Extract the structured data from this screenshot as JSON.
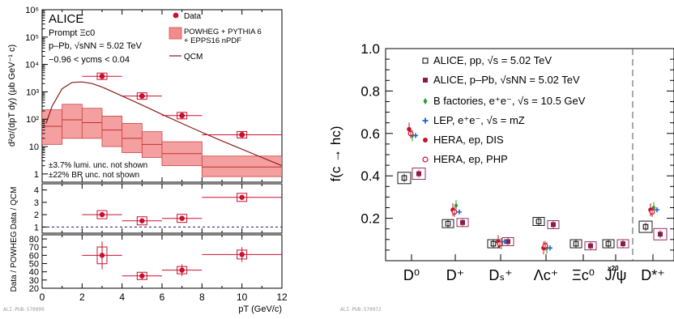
{
  "chart_data": [
    {
      "type": "scatter",
      "panel": "left",
      "experiment": "ALICE",
      "info_lines": [
        "Prompt Ξc0",
        "p–Pb, √sNN = 5.02 TeV",
        "−0.96 < ycms < 0.04"
      ],
      "ylabel": "d²σ/(dpT dy) (μb GeV⁻¹ c)",
      "xlabel": "pT (GeV/c)",
      "xlim": [
        0,
        12
      ],
      "x_ticks": [
        "0",
        "2",
        "4",
        "6",
        "8",
        "10",
        "12"
      ],
      "top": {
        "log_y": true,
        "ylim": [
          0.5,
          1000000
        ],
        "y_ticks": [
          "1",
          "10",
          "10²",
          "10³",
          "10⁴",
          "10⁵",
          "10⁶"
        ],
        "legend": [
          "Data",
          "POWHEG + PYTHIA 6 + EPPS16 nPDF",
          "QCM"
        ],
        "data": [
          {
            "x": 3,
            "xerr": 1,
            "y": 3700
          },
          {
            "x": 5,
            "xerr": 1,
            "y": 700
          },
          {
            "x": 7,
            "xerr": 1,
            "y": 135
          },
          {
            "x": 10,
            "xerr": 2,
            "y": 27
          }
        ],
        "powheg_bins": [
          {
            "xlo": 0,
            "xhi": 1,
            "central": 55,
            "lo": 12,
            "hi": 220
          },
          {
            "xlo": 1,
            "xhi": 2,
            "central": 95,
            "lo": 20,
            "hi": 350
          },
          {
            "xlo": 2,
            "xhi": 3,
            "central": 75,
            "lo": 20,
            "hi": 250
          },
          {
            "xlo": 3,
            "xhi": 4,
            "central": 40,
            "lo": 10,
            "hi": 130
          },
          {
            "xlo": 4,
            "xhi": 5,
            "central": 20,
            "lo": 6,
            "hi": 70
          },
          {
            "xlo": 5,
            "xhi": 6,
            "central": 12,
            "lo": 4,
            "hi": 35
          },
          {
            "xlo": 6,
            "xhi": 8,
            "central": 5.5,
            "lo": 2,
            "hi": 15
          },
          {
            "xlo": 8,
            "xhi": 12,
            "central": 1.8,
            "lo": 0.8,
            "hi": 4.5
          }
        ],
        "qcm_curve": [
          [
            0.2,
            70
          ],
          [
            0.5,
            300
          ],
          [
            1,
            1300
          ],
          [
            1.5,
            2200
          ],
          [
            2,
            2300
          ],
          [
            2.5,
            2000
          ],
          [
            3,
            1500
          ],
          [
            4,
            700
          ],
          [
            5,
            330
          ],
          [
            6,
            150
          ],
          [
            7,
            70
          ],
          [
            8,
            33
          ],
          [
            9,
            16
          ],
          [
            10,
            8
          ],
          [
            11,
            4
          ],
          [
            12,
            2
          ]
        ],
        "notes": [
          "±3.7% lumi. unc. not shown",
          "±22% BR unc. not shown"
        ]
      },
      "ratio_qcm": {
        "ylabel": "Data / QCM",
        "ylim": [
          0.5,
          4.5
        ],
        "y_ticks": [
          "1",
          "2",
          "3",
          "4"
        ],
        "ref_line": 1,
        "data": [
          {
            "x": 3,
            "xerr": 1,
            "y": 2.0
          },
          {
            "x": 5,
            "xerr": 1,
            "y": 1.5
          },
          {
            "x": 7,
            "xerr": 1,
            "y": 1.7
          },
          {
            "x": 10,
            "xerr": 2,
            "y": 3.4
          }
        ]
      },
      "ratio_powheg": {
        "ylabel": "Data / POWHEG",
        "ylim": [
          20,
          85
        ],
        "y_ticks": [
          "20",
          "30",
          "40",
          "50",
          "60",
          "70",
          "80"
        ],
        "data": [
          {
            "x": 3,
            "xerr": 1,
            "y": 60,
            "err": 17
          },
          {
            "x": 5,
            "xerr": 1,
            "y": 35,
            "err": 4
          },
          {
            "x": 7,
            "xerr": 1,
            "y": 42,
            "err": 7
          },
          {
            "x": 10,
            "xerr": 2,
            "y": 61,
            "err": 9
          }
        ]
      },
      "pub_id": "ALI-PUB-570999"
    },
    {
      "type": "scatter",
      "panel": "right",
      "ylabel": "f(c → hc)",
      "ylim": [
        0,
        1.0
      ],
      "y_ticks": [
        "0.2",
        "0.4",
        "0.6",
        "0.8",
        "1.0"
      ],
      "categories": [
        "D⁰",
        "D⁺",
        "Dₛ⁺",
        "Λc⁺",
        "Ξc⁰",
        "J/ψ",
        "D*⁺"
      ],
      "annotation": "×20",
      "series": [
        {
          "name": "ALICE, pp, √s = 5.02 TeV",
          "color": "#000000",
          "marker": "open-square",
          "values": [
            0.39,
            0.175,
            0.08,
            0.185,
            0.08,
            0.08,
            0.16
          ]
        },
        {
          "name": "ALICE, p–Pb, √sNN = 5.02 TeV",
          "color": "#8b1a4a",
          "marker": "filled-square",
          "values": [
            0.41,
            0.18,
            0.09,
            0.17,
            0.07,
            0.08,
            0.125
          ]
        },
        {
          "name": "B factories, e⁺e⁻, √s = 10.5 GeV",
          "color": "#2e9a2e",
          "marker": "diamond",
          "values": [
            0.59,
            0.26,
            0.08,
            0.06,
            null,
            null,
            0.25
          ]
        },
        {
          "name": "LEP, e⁺e⁻, √s = mZ",
          "color": "#1a66cc",
          "marker": "cross",
          "values": [
            0.59,
            0.23,
            0.09,
            0.06,
            null,
            null,
            0.24
          ]
        },
        {
          "name": "HERA, ep, DIS",
          "color": "#c8102e",
          "marker": "filled-circle",
          "values": [
            0.62,
            0.24,
            0.09,
            0.06,
            null,
            null,
            0.24
          ]
        },
        {
          "name": "HERA, ep, PHP",
          "color": "#c8102e",
          "marker": "open-circle",
          "values": [
            0.6,
            0.23,
            0.08,
            0.07,
            null,
            null,
            0.23
          ]
        }
      ],
      "pub_id": "ALI-PUB-570972"
    }
  ]
}
